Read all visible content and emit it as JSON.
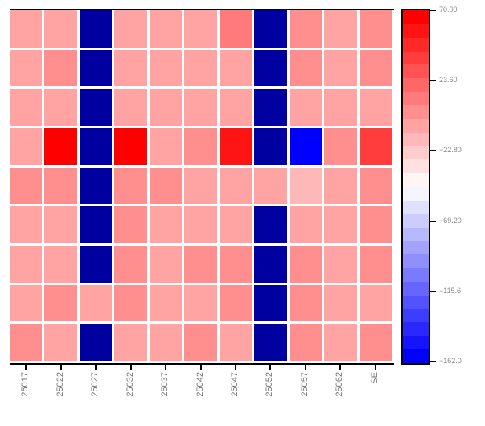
{
  "chart_data": {
    "type": "heatmap",
    "title": "",
    "xlabel": "",
    "ylabel": "",
    "categories": [
      "25017",
      "25022",
      "25027",
      "25032",
      "25037",
      "25042",
      "25047",
      "25052",
      "25057",
      "25062",
      "SE"
    ],
    "rows": 9,
    "colorbar": {
      "min": -162.0,
      "max": 70.0,
      "ticks": [
        70.0,
        23.6,
        -22.8,
        -69.2,
        -115.6,
        -162.0
      ],
      "tick_labels": [
        "70.00",
        "23.60",
        "−22.80",
        "−69.20",
        "−115.6",
        "−162.0"
      ],
      "colormap": "blue-white-red",
      "low_color": "#0000ff",
      "mid_color": "#ffffff",
      "high_color": "#ff0000"
    },
    "missing_color": "#0000a0",
    "values": [
      [
        -5,
        -5,
        null,
        -5,
        -5,
        -5,
        15,
        null,
        5,
        -5,
        5
      ],
      [
        -5,
        5,
        null,
        -5,
        -5,
        -5,
        -5,
        null,
        5,
        -5,
        5
      ],
      [
        -5,
        -5,
        null,
        -5,
        -5,
        -5,
        -5,
        null,
        -5,
        -5,
        -5
      ],
      [
        -5,
        65,
        null,
        70,
        -5,
        5,
        60,
        null,
        -162,
        5,
        35
      ],
      [
        5,
        5,
        null,
        5,
        5,
        -5,
        -5,
        -5,
        -15,
        -5,
        5
      ],
      [
        -5,
        -5,
        null,
        5,
        -5,
        -5,
        -5,
        null,
        -5,
        -5,
        5
      ],
      [
        -5,
        -5,
        null,
        5,
        -5,
        5,
        5,
        null,
        5,
        -5,
        5
      ],
      [
        -5,
        5,
        -5,
        5,
        -5,
        -5,
        5,
        null,
        5,
        -5,
        -5
      ],
      [
        5,
        -5,
        null,
        -5,
        -5,
        5,
        -5,
        null,
        5,
        -5,
        5
      ]
    ]
  }
}
